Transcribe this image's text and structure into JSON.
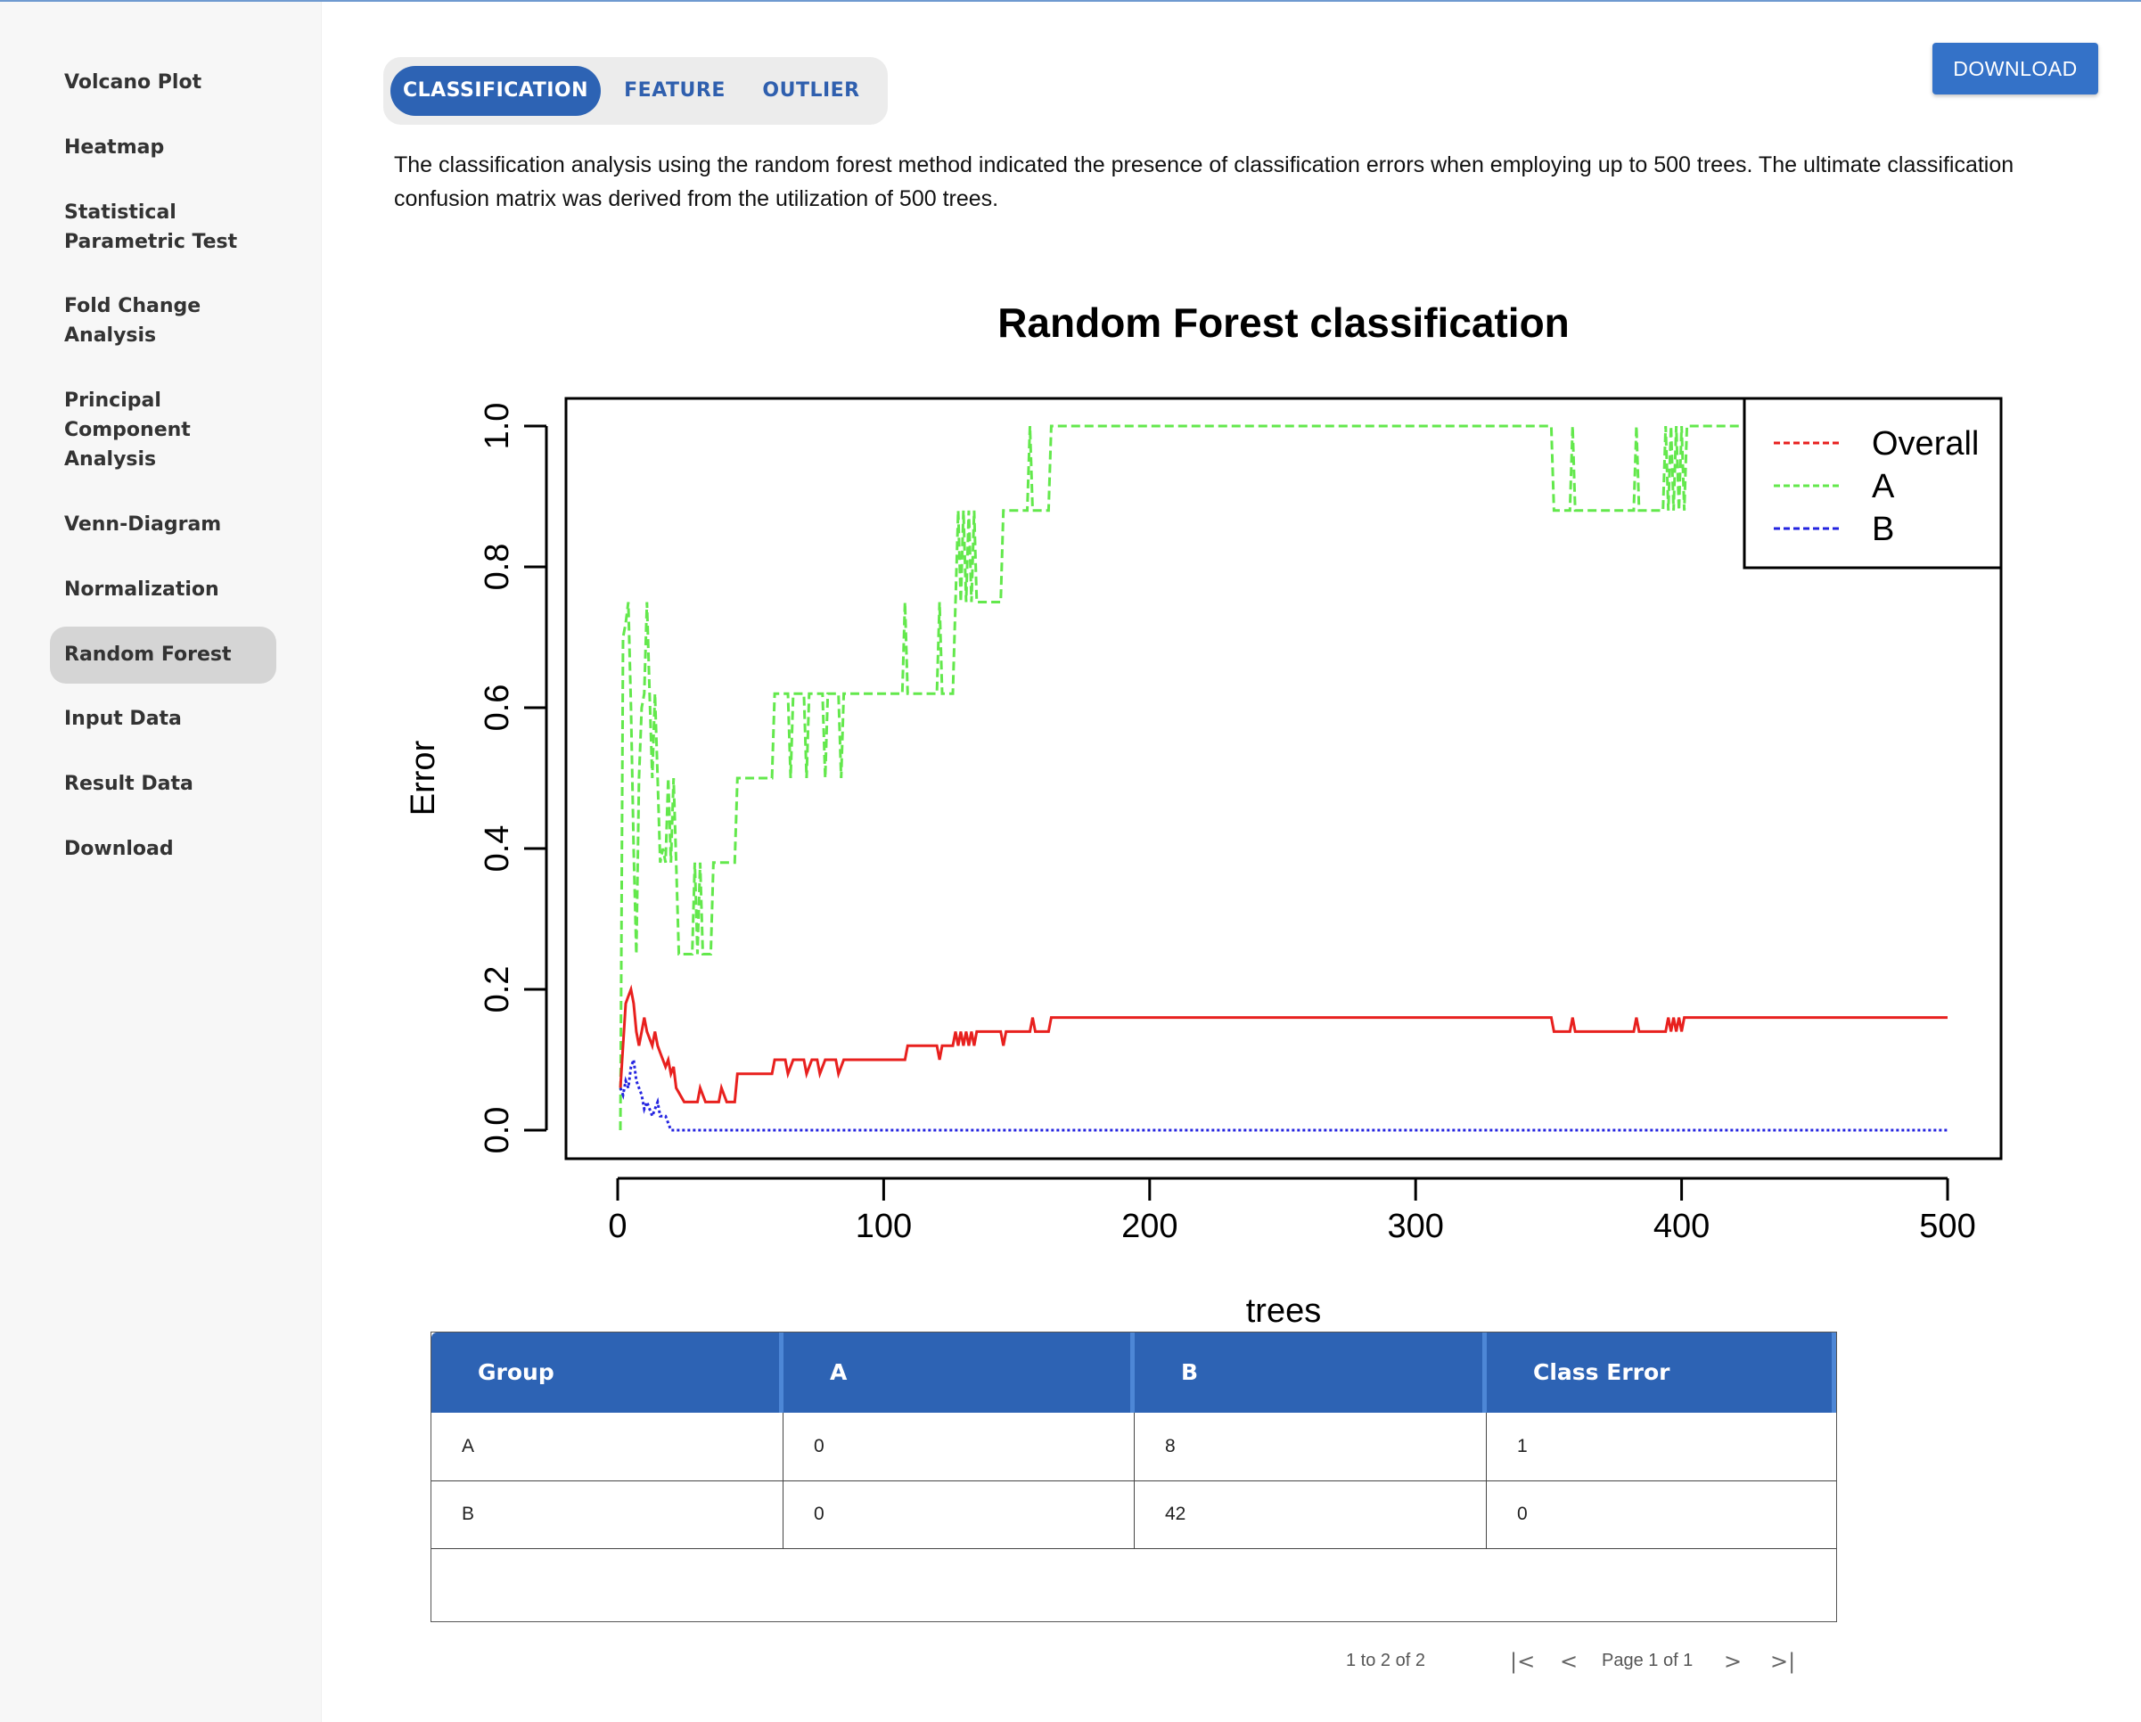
{
  "sidebar": {
    "items": [
      {
        "label": "Volcano Plot",
        "active": false
      },
      {
        "label": "Heatmap",
        "active": false
      },
      {
        "label": "Statistical Parametric Test",
        "active": false
      },
      {
        "label": "Fold Change Analysis",
        "active": false
      },
      {
        "label": "Principal Component Analysis",
        "active": false
      },
      {
        "label": "Venn-Diagram",
        "active": false
      },
      {
        "label": "Normalization",
        "active": false
      },
      {
        "label": "Random Forest",
        "active": true
      },
      {
        "label": "Input Data",
        "active": false
      },
      {
        "label": "Result Data",
        "active": false
      },
      {
        "label": "Download",
        "active": false
      }
    ]
  },
  "tabs": [
    {
      "label": "CLASSIFICATION",
      "active": true
    },
    {
      "label": "FEATURE",
      "active": false
    },
    {
      "label": "OUTLIER",
      "active": false
    }
  ],
  "toolbar": {
    "download_label": "DOWNLOAD"
  },
  "description": "The classification analysis using the random forest method indicated the presence of classification errors when employing up to 500 trees. The ultimate classification confusion matrix was derived from the utilization of 500 trees.",
  "chart_data": {
    "type": "line",
    "title": "Random Forest classification",
    "xlabel": "trees",
    "ylabel": "Error",
    "xlim": [
      0,
      500
    ],
    "ylim": [
      0,
      1
    ],
    "x_ticks": [
      0,
      100,
      200,
      300,
      400,
      500
    ],
    "y_ticks": [
      0.0,
      0.2,
      0.4,
      0.6,
      0.8,
      1.0
    ],
    "y_tick_labels": [
      "0.0",
      "0.2",
      "0.4",
      "0.6",
      "0.8",
      "1.0"
    ],
    "legend_position": "top-right",
    "series": [
      {
        "name": "Overall",
        "color": "#e8201e",
        "style": "solid",
        "points": [
          [
            1,
            0.06
          ],
          [
            2,
            0.12
          ],
          [
            3,
            0.18
          ],
          [
            4,
            0.19
          ],
          [
            5,
            0.2
          ],
          [
            6,
            0.18
          ],
          [
            7,
            0.14
          ],
          [
            8,
            0.12
          ],
          [
            9,
            0.14
          ],
          [
            10,
            0.16
          ],
          [
            11,
            0.14
          ],
          [
            12,
            0.13
          ],
          [
            13,
            0.12
          ],
          [
            14,
            0.14
          ],
          [
            15,
            0.12
          ],
          [
            16,
            0.11
          ],
          [
            17,
            0.1
          ],
          [
            18,
            0.09
          ],
          [
            19,
            0.1
          ],
          [
            20,
            0.08
          ],
          [
            21,
            0.09
          ],
          [
            22,
            0.06
          ],
          [
            25,
            0.04
          ],
          [
            30,
            0.04
          ],
          [
            31,
            0.06
          ],
          [
            33,
            0.04
          ],
          [
            38,
            0.04
          ],
          [
            39,
            0.06
          ],
          [
            41,
            0.04
          ],
          [
            44,
            0.04
          ],
          [
            45,
            0.08
          ],
          [
            58,
            0.08
          ],
          [
            59,
            0.1
          ],
          [
            63,
            0.1
          ],
          [
            64,
            0.08
          ],
          [
            66,
            0.1
          ],
          [
            70,
            0.1
          ],
          [
            71,
            0.08
          ],
          [
            73,
            0.1
          ],
          [
            75,
            0.1
          ],
          [
            76,
            0.08
          ],
          [
            78,
            0.1
          ],
          [
            82,
            0.1
          ],
          [
            83,
            0.08
          ],
          [
            85,
            0.1
          ],
          [
            108,
            0.1
          ],
          [
            109,
            0.12
          ],
          [
            120,
            0.12
          ],
          [
            121,
            0.1
          ],
          [
            122,
            0.12
          ],
          [
            126,
            0.12
          ],
          [
            127,
            0.14
          ],
          [
            128,
            0.12
          ],
          [
            129,
            0.14
          ],
          [
            130,
            0.12
          ],
          [
            131,
            0.14
          ],
          [
            132,
            0.12
          ],
          [
            133,
            0.14
          ],
          [
            134,
            0.12
          ],
          [
            135,
            0.14
          ],
          [
            144,
            0.14
          ],
          [
            145,
            0.12
          ],
          [
            146,
            0.14
          ],
          [
            155,
            0.14
          ],
          [
            156,
            0.16
          ],
          [
            157,
            0.14
          ],
          [
            162,
            0.14
          ],
          [
            163,
            0.16
          ],
          [
            351,
            0.16
          ],
          [
            352,
            0.14
          ],
          [
            358,
            0.14
          ],
          [
            359,
            0.16
          ],
          [
            360,
            0.14
          ],
          [
            382,
            0.14
          ],
          [
            383,
            0.16
          ],
          [
            384,
            0.14
          ],
          [
            394,
            0.14
          ],
          [
            395,
            0.16
          ],
          [
            396,
            0.14
          ],
          [
            397,
            0.16
          ],
          [
            398,
            0.14
          ],
          [
            399,
            0.16
          ],
          [
            400,
            0.14
          ],
          [
            401,
            0.16
          ],
          [
            500,
            0.16
          ]
        ]
      },
      {
        "name": "A",
        "color": "#63e84c",
        "style": "dashed",
        "points": [
          [
            1,
            0.0
          ],
          [
            2,
            0.7
          ],
          [
            3,
            0.72
          ],
          [
            4,
            0.75
          ],
          [
            5,
            0.6
          ],
          [
            6,
            0.4
          ],
          [
            7,
            0.25
          ],
          [
            8,
            0.5
          ],
          [
            9,
            0.6
          ],
          [
            10,
            0.62
          ],
          [
            11,
            0.75
          ],
          [
            12,
            0.62
          ],
          [
            13,
            0.5
          ],
          [
            14,
            0.62
          ],
          [
            15,
            0.5
          ],
          [
            16,
            0.38
          ],
          [
            17,
            0.4
          ],
          [
            18,
            0.38
          ],
          [
            19,
            0.5
          ],
          [
            20,
            0.38
          ],
          [
            21,
            0.5
          ],
          [
            22,
            0.38
          ],
          [
            23,
            0.25
          ],
          [
            28,
            0.25
          ],
          [
            29,
            0.38
          ],
          [
            30,
            0.25
          ],
          [
            31,
            0.38
          ],
          [
            32,
            0.25
          ],
          [
            35,
            0.25
          ],
          [
            36,
            0.38
          ],
          [
            44,
            0.38
          ],
          [
            45,
            0.5
          ],
          [
            58,
            0.5
          ],
          [
            59,
            0.62
          ],
          [
            64,
            0.62
          ],
          [
            65,
            0.5
          ],
          [
            66,
            0.62
          ],
          [
            70,
            0.62
          ],
          [
            71,
            0.5
          ],
          [
            72,
            0.62
          ],
          [
            77,
            0.62
          ],
          [
            78,
            0.5
          ],
          [
            79,
            0.62
          ],
          [
            83,
            0.62
          ],
          [
            84,
            0.5
          ],
          [
            85,
            0.62
          ],
          [
            107,
            0.62
          ],
          [
            108,
            0.75
          ],
          [
            109,
            0.62
          ],
          [
            120,
            0.62
          ],
          [
            121,
            0.75
          ],
          [
            122,
            0.62
          ],
          [
            126,
            0.62
          ],
          [
            127,
            0.75
          ],
          [
            128,
            0.88
          ],
          [
            129,
            0.75
          ],
          [
            130,
            0.88
          ],
          [
            131,
            0.75
          ],
          [
            132,
            0.88
          ],
          [
            133,
            0.75
          ],
          [
            134,
            0.88
          ],
          [
            135,
            0.75
          ],
          [
            144,
            0.75
          ],
          [
            145,
            0.88
          ],
          [
            154,
            0.88
          ],
          [
            155,
            1.0
          ],
          [
            156,
            0.88
          ],
          [
            162,
            0.88
          ],
          [
            163,
            1.0
          ],
          [
            351,
            1.0
          ],
          [
            352,
            0.88
          ],
          [
            358,
            0.88
          ],
          [
            359,
            1.0
          ],
          [
            360,
            0.88
          ],
          [
            382,
            0.88
          ],
          [
            383,
            1.0
          ],
          [
            384,
            0.88
          ],
          [
            393,
            0.88
          ],
          [
            394,
            1.0
          ],
          [
            395,
            0.88
          ],
          [
            396,
            1.0
          ],
          [
            397,
            0.88
          ],
          [
            398,
            1.0
          ],
          [
            399,
            0.88
          ],
          [
            400,
            1.0
          ],
          [
            401,
            0.88
          ],
          [
            402,
            1.0
          ],
          [
            500,
            1.0
          ]
        ]
      },
      {
        "name": "B",
        "color": "#2424e0",
        "style": "dotted",
        "points": [
          [
            1,
            0.06
          ],
          [
            2,
            0.05
          ],
          [
            3,
            0.07
          ],
          [
            4,
            0.06
          ],
          [
            5,
            0.09
          ],
          [
            6,
            0.1
          ],
          [
            7,
            0.07
          ],
          [
            8,
            0.06
          ],
          [
            9,
            0.05
          ],
          [
            10,
            0.03
          ],
          [
            11,
            0.04
          ],
          [
            12,
            0.03
          ],
          [
            13,
            0.02
          ],
          [
            14,
            0.03
          ],
          [
            15,
            0.04
          ],
          [
            16,
            0.02
          ],
          [
            17,
            0.02
          ],
          [
            18,
            0.02
          ],
          [
            19,
            0.01
          ],
          [
            20,
            0.0
          ],
          [
            500,
            0.0
          ]
        ]
      }
    ]
  },
  "confusion_table": {
    "headers": [
      "Group",
      "A",
      "B",
      "Class Error"
    ],
    "rows": [
      [
        "A",
        "0",
        "8",
        "1"
      ],
      [
        "B",
        "0",
        "42",
        "0"
      ]
    ]
  },
  "pagination": {
    "range_text": "1 to 2 of 2",
    "page_text": "Page 1 of 1"
  },
  "icons": {
    "first": "first-page-icon",
    "prev": "prev-page-icon",
    "next": "next-page-icon",
    "last": "last-page-icon"
  }
}
